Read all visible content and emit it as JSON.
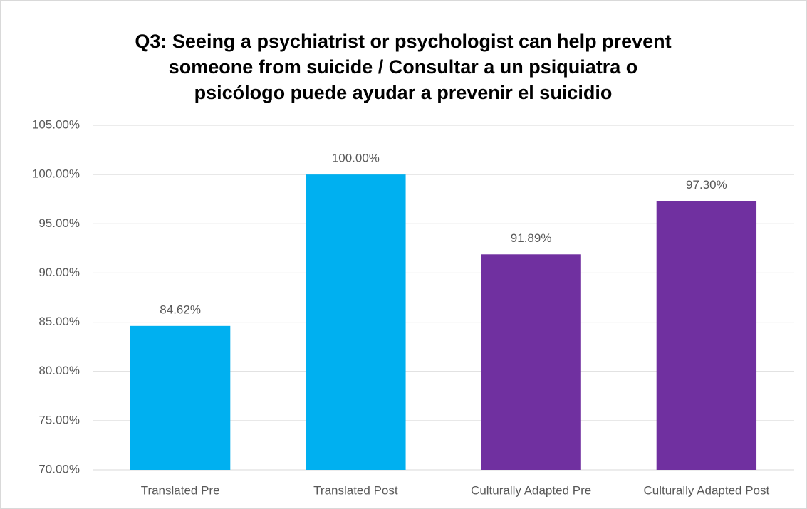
{
  "chart_data": {
    "type": "bar",
    "title": [
      "Q3: Seeing a psychiatrist or psychologist can help prevent",
      "someone from suicide / Consultar a un psiquiatra o",
      "psicólogo puede ayudar a prevenir el suicidio"
    ],
    "categories": [
      "Translated Pre",
      "Translated Post",
      "Culturally Adapted Pre",
      "Culturally Adapted Post"
    ],
    "values": [
      84.62,
      100.0,
      91.89,
      97.3
    ],
    "value_labels": [
      "84.62%",
      "100.00%",
      "91.89%",
      "97.30%"
    ],
    "colors": [
      "#00b0f0",
      "#00b0f0",
      "#7030a0",
      "#7030a0"
    ],
    "ylim": [
      70,
      105
    ],
    "yticks": [
      {
        "value": 70,
        "label": "70.00%"
      },
      {
        "value": 75,
        "label": "75.00%"
      },
      {
        "value": 80,
        "label": "80.00%"
      },
      {
        "value": 85,
        "label": "85.00%"
      },
      {
        "value": 90,
        "label": "90.00%"
      },
      {
        "value": 95,
        "label": "95.00%"
      },
      {
        "value": 100,
        "label": "100.00%"
      },
      {
        "value": 105,
        "label": "105.00%"
      }
    ],
    "grid": true
  }
}
